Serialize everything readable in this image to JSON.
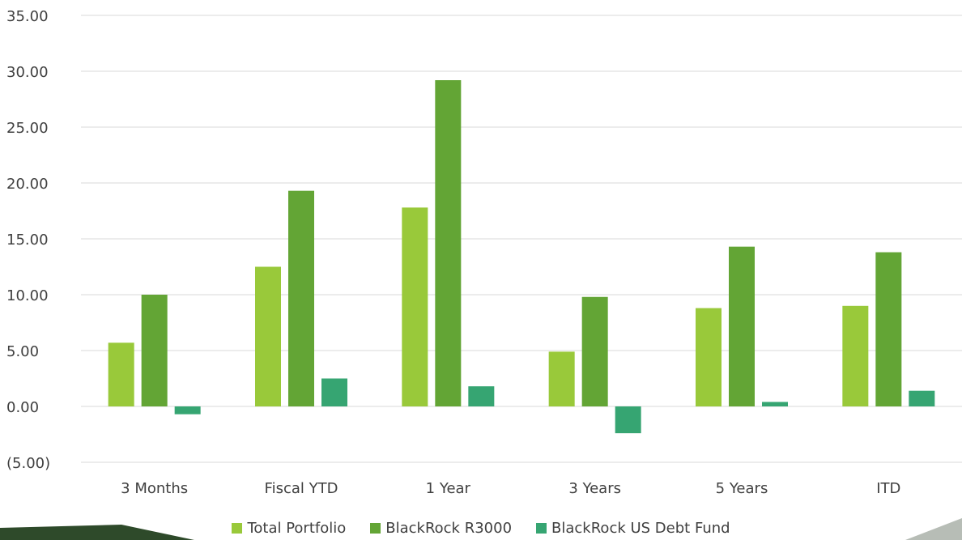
{
  "chart_data": {
    "type": "bar",
    "categories": [
      "3 Months",
      "Fiscal YTD",
      "1 Year",
      "3 Years",
      "5 Years",
      "ITD"
    ],
    "series": [
      {
        "name": "Total Portfolio",
        "color": "#99c93a",
        "values": [
          5.7,
          12.5,
          17.8,
          4.9,
          8.8,
          9.0
        ]
      },
      {
        "name": "BlackRock R3000",
        "color": "#63a535",
        "values": [
          10.0,
          19.3,
          29.2,
          9.8,
          14.3,
          13.8
        ]
      },
      {
        "name": "BlackRock US Debt Fund",
        "color": "#36a572",
        "values": [
          -0.7,
          2.5,
          1.8,
          -2.4,
          0.4,
          1.4
        ]
      }
    ],
    "y_ticks": [
      "(5.00)",
      "0.00",
      "5.00",
      "10.00",
      "15.00",
      "20.00",
      "25.00",
      "30.00",
      "35.00"
    ],
    "ylim": [
      -5,
      35
    ],
    "grid": true,
    "legend_position": "bottom",
    "gridline_color": "#d9d9d9"
  }
}
